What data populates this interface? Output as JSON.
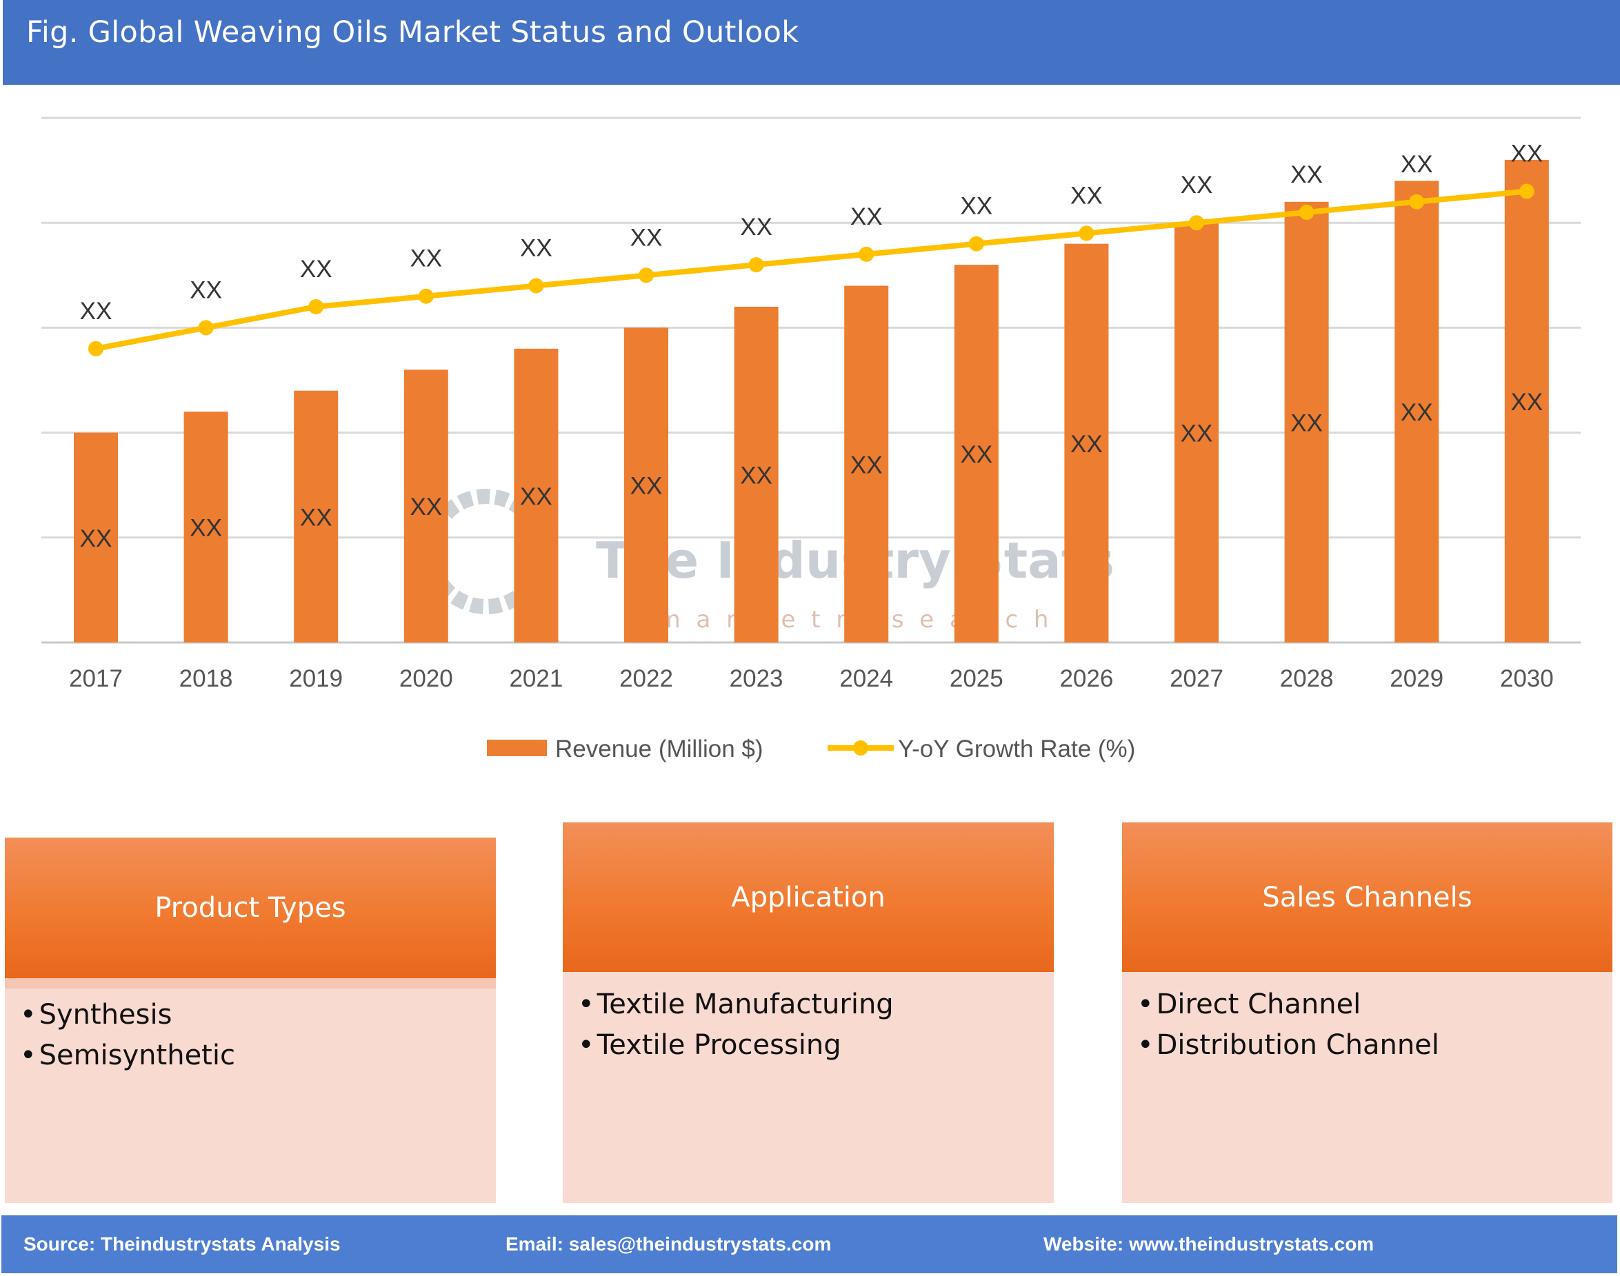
{
  "header": {
    "title": "Fig. Global Weaving Oils Market Status and Outlook"
  },
  "chart_data": {
    "type": "bar",
    "categories": [
      "2017",
      "2018",
      "2019",
      "2020",
      "2021",
      "2022",
      "2023",
      "2024",
      "2025",
      "2026",
      "2027",
      "2028",
      "2029",
      "2030"
    ],
    "series": [
      {
        "name": "Revenue (Million $)",
        "type": "bar",
        "color": "#ED7D31",
        "values": [
          2.0,
          2.2,
          2.4,
          2.6,
          2.8,
          3.0,
          3.2,
          3.4,
          3.6,
          3.8,
          4.0,
          4.2,
          4.4,
          4.6
        ],
        "labels": [
          "XX",
          "XX",
          "XX",
          "XX",
          "XX",
          "XX",
          "XX",
          "XX",
          "XX",
          "XX",
          "XX",
          "XX",
          "XX",
          "XX"
        ]
      },
      {
        "name": "Y-oY Growth Rate (%)",
        "type": "line",
        "color": "#FFC000",
        "values": [
          2.8,
          3.0,
          3.2,
          3.3,
          3.4,
          3.5,
          3.6,
          3.7,
          3.8,
          3.9,
          4.0,
          4.1,
          4.2,
          4.3
        ],
        "labels": [
          "XX",
          "XX",
          "XX",
          "XX",
          "XX",
          "XX",
          "XX",
          "XX",
          "XX",
          "XX",
          "XX",
          "XX",
          "XX",
          "XX"
        ]
      }
    ],
    "ylim": [
      0,
      5
    ],
    "grid": true,
    "legend": "bottom",
    "title": "",
    "xlabel": "",
    "ylabel": ""
  },
  "watermark": {
    "name": "The Industry Stats",
    "tagline": "m a r k e t   r e s e a r c h"
  },
  "segments": [
    {
      "title": "Product Types",
      "items": [
        "Synthesis",
        "Semisynthetic"
      ]
    },
    {
      "title": "Application",
      "items": [
        "Textile Manufacturing",
        "Textile Processing"
      ]
    },
    {
      "title": "Sales Channels",
      "items": [
        "Direct Channel",
        "Distribution Channel"
      ]
    }
  ],
  "footer": {
    "source": "Source: Theindustrystats Analysis",
    "email": "Email: sales@theindustrystats.com",
    "website": "Website: www.theindustrystats.com"
  }
}
